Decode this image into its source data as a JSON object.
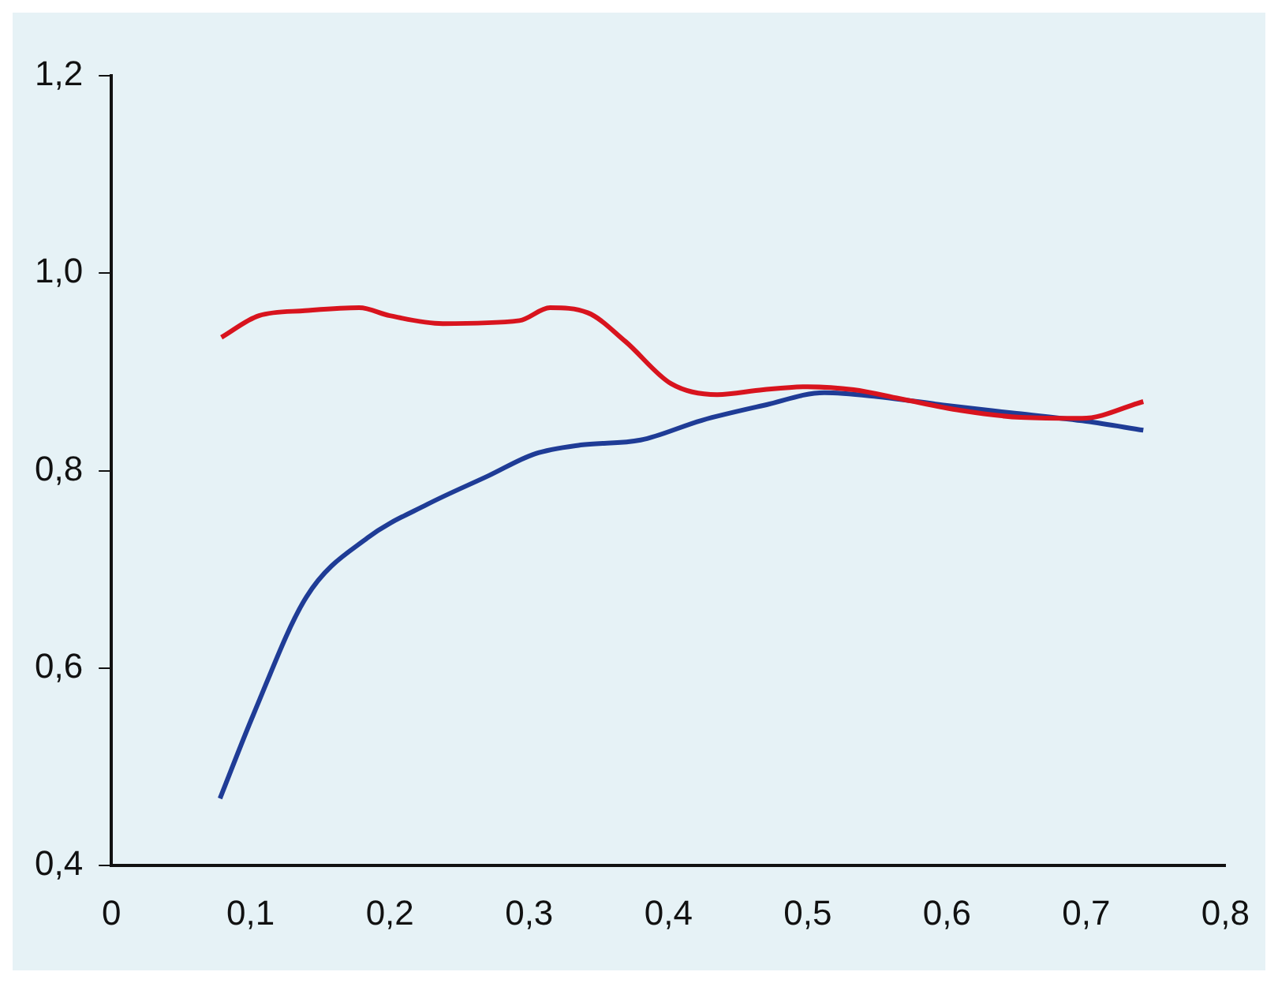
{
  "chart_data": {
    "type": "line",
    "xlim": [
      0,
      0.8
    ],
    "xticks": [
      {
        "value": 0,
        "label": "0"
      },
      {
        "value": 0.1,
        "label": "0,1"
      },
      {
        "value": 0.2,
        "label": "0,2"
      },
      {
        "value": 0.3,
        "label": "0,3"
      },
      {
        "value": 0.4,
        "label": "0,4"
      },
      {
        "value": 0.5,
        "label": "0,5"
      },
      {
        "value": 0.6,
        "label": "0,6"
      },
      {
        "value": 0.7,
        "label": "0,7"
      },
      {
        "value": 0.8,
        "label": "0,8"
      }
    ],
    "ylim": [
      0.4,
      1.2
    ],
    "yticks": [
      {
        "value": 0.4,
        "label": "0,4"
      },
      {
        "value": 0.6,
        "label": "0,6"
      },
      {
        "value": 0.8,
        "label": "0,8"
      },
      {
        "value": 1.0,
        "label": "1,0"
      },
      {
        "value": 1.2,
        "label": "1,2"
      }
    ],
    "grid": false,
    "legend": false,
    "marker": "none",
    "line_style": "solid",
    "series": [
      {
        "color": "#d8141e",
        "x": [
          0.079,
          0.106,
          0.139,
          0.178,
          0.2,
          0.238,
          0.293,
          0.315,
          0.342,
          0.369,
          0.402,
          0.435,
          0.468,
          0.5,
          0.533,
          0.566,
          0.61,
          0.653,
          0.697,
          0.741
        ],
        "values": [
          0.935,
          0.957,
          0.962,
          0.965,
          0.957,
          0.949,
          0.952,
          0.965,
          0.96,
          0.931,
          0.888,
          0.877,
          0.882,
          0.885,
          0.882,
          0.873,
          0.861,
          0.854,
          0.853,
          0.87
        ]
      },
      {
        "color": "#1f3c96",
        "x": [
          0.078,
          0.102,
          0.14,
          0.184,
          0.227,
          0.271,
          0.304,
          0.337,
          0.38,
          0.424,
          0.468,
          0.512,
          0.55,
          0.6,
          0.65,
          0.7,
          0.741
        ],
        "values": [
          0.468,
          0.553,
          0.672,
          0.732,
          0.766,
          0.795,
          0.817,
          0.826,
          0.831,
          0.851,
          0.866,
          0.879,
          0.875,
          0.866,
          0.858,
          0.85,
          0.841
        ]
      }
    ]
  }
}
